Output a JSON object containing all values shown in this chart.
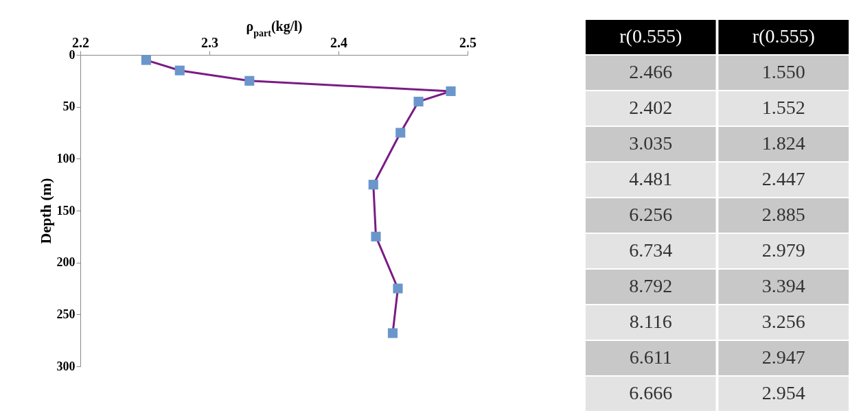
{
  "chart_data": [
    {
      "type": "line",
      "xlabel": "ρ$_{part}$(kg/l)",
      "ylabel": "Depth (m)",
      "xlim": [
        2.2,
        2.5
      ],
      "xticks": [
        2.2,
        2.3,
        2.4,
        2.5
      ],
      "ylim": [
        300,
        0
      ],
      "yticks": [
        0,
        50,
        100,
        150,
        200,
        250,
        300
      ],
      "grid": false,
      "marker": "square",
      "line_style": "solid",
      "series": [
        {
          "color": "#7b1b84",
          "colors": [
            "#6a96cc",
            "#6a96cc",
            "#6a96cc",
            "#6a96cc",
            "#6a96cc",
            "#6a96cc",
            "#6a96cc",
            "#6a96cc",
            "#6a96cc",
            "#6a96cc"
          ],
          "x": [
            2.251,
            2.277,
            2.331,
            2.487,
            2.462,
            2.448,
            2.427,
            2.429,
            2.446,
            2.442
          ],
          "values": [
            5,
            15,
            25,
            35,
            45,
            75,
            125,
            175,
            225,
            268
          ]
        }
      ]
    },
    {
      "type": "other",
      "categories": [
        "r(0.555)",
        "r(0.555)"
      ],
      "annotations": [
        "2.466",
        "1.550",
        "2.402",
        "1.552",
        "3.035",
        "1.824",
        "4.481",
        "2.447",
        "6.256",
        "2.885",
        "6.734",
        "2.979",
        "8.792",
        "3.394",
        "8.116",
        "3.256",
        "6.611",
        "2.947",
        "6.666",
        "2.954"
      ]
    }
  ]
}
